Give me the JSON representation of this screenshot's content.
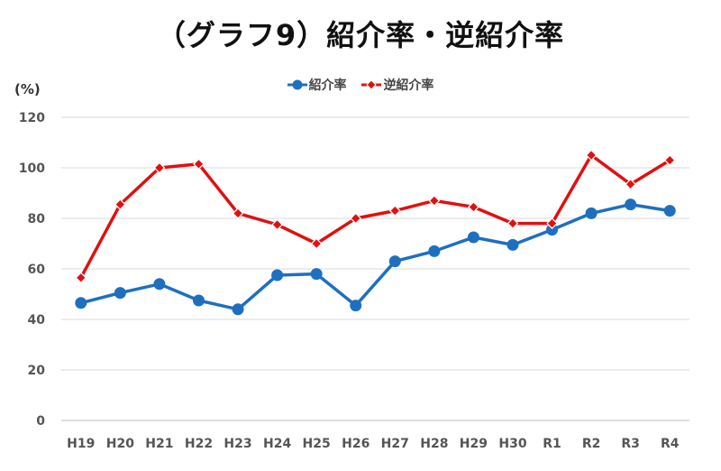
{
  "chart_data": {
    "type": "line",
    "title": "（グラフ9）紹介率・逆紹介率",
    "unit": "(%)",
    "categories": [
      "H19",
      "H20",
      "H21",
      "H22",
      "H23",
      "H24",
      "H25",
      "H26",
      "H27",
      "H28",
      "H29",
      "H30",
      "R1",
      "R2",
      "R3",
      "R4"
    ],
    "ylim": [
      0,
      120
    ],
    "yticks": [
      0,
      20,
      40,
      60,
      80,
      100,
      120
    ],
    "grid": true,
    "legend": "top",
    "series": [
      {
        "name": "紹介率",
        "color": "#1f6fbf",
        "marker": "circle",
        "values": [
          46.5,
          50.5,
          54.0,
          47.5,
          44.0,
          57.5,
          58.0,
          45.5,
          63.0,
          67.0,
          72.5,
          69.5,
          75.5,
          82.0,
          85.5,
          83.0
        ]
      },
      {
        "name": "逆紹介率",
        "color": "#e01010",
        "marker": "diamond",
        "values": [
          56.5,
          85.5,
          100.0,
          101.5,
          82.0,
          77.5,
          70.0,
          80.0,
          83.0,
          87.0,
          84.5,
          78.0,
          78.0,
          105.0,
          93.5,
          103.0
        ]
      }
    ]
  }
}
